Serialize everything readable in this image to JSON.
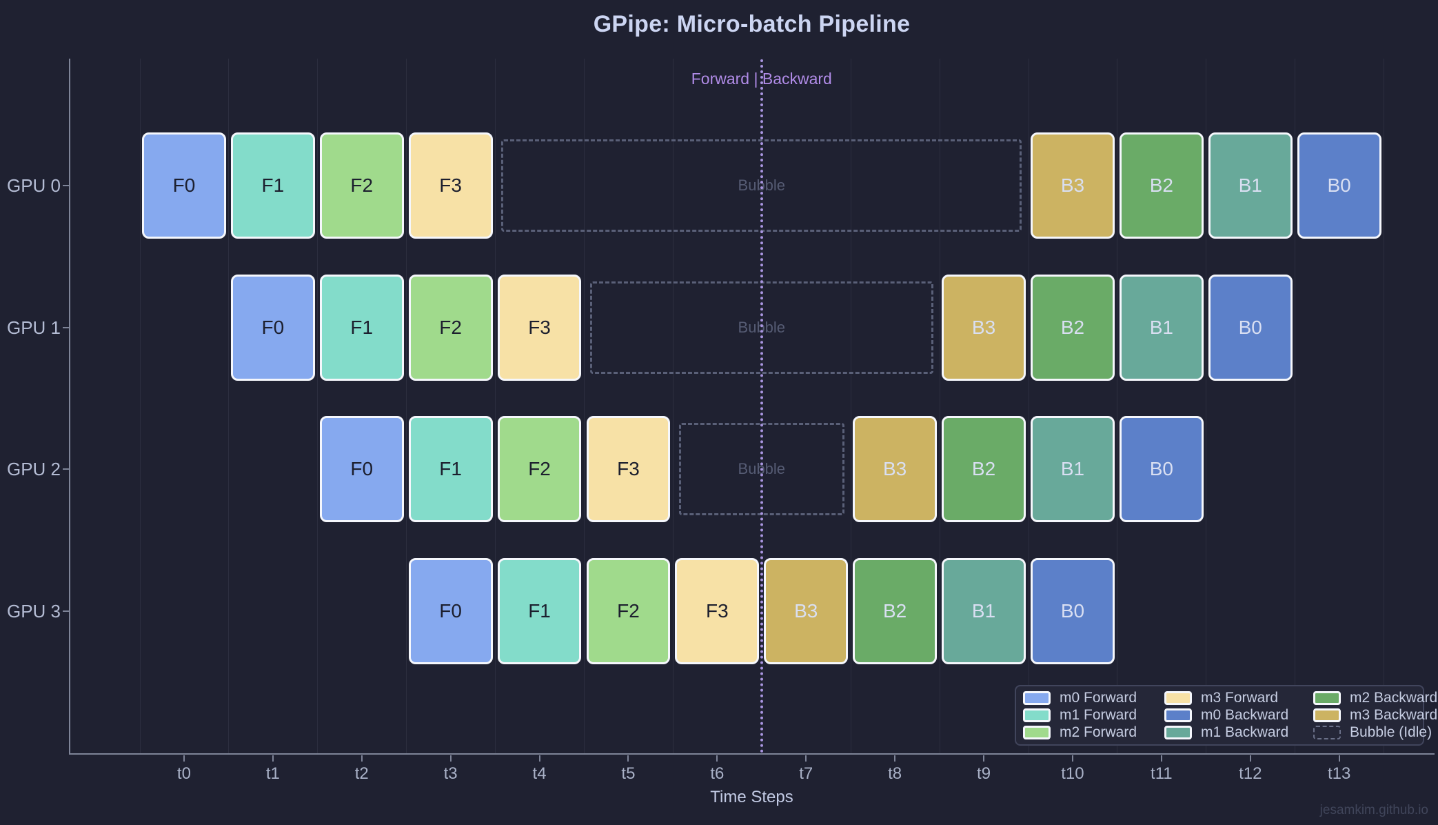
{
  "watermark": "jesamkim.github.io",
  "chart_data": {
    "type": "gantt",
    "title": "GPipe: Micro-batch Pipeline",
    "xlabel": "Time Steps",
    "x_ticks": [
      "t0",
      "t1",
      "t2",
      "t3",
      "t4",
      "t5",
      "t6",
      "t7",
      "t8",
      "t9",
      "t10",
      "t11",
      "t12",
      "t13"
    ],
    "y_labels": [
      "GPU 0",
      "GPU 1",
      "GPU 2",
      "GPU 3"
    ],
    "x_range": [
      0,
      14
    ],
    "grid": "vertical-only",
    "legend_position": "bottom-right",
    "divider": {
      "position": 7,
      "label": "Forward | Backward"
    },
    "bubble_label": "Bubble",
    "palette": {
      "m0_forward": "#86a9ef",
      "m1_forward": "#83dcca",
      "m2_forward": "#a0da8c",
      "m3_forward": "#f7e1a6",
      "m0_backward": "#5c80c9",
      "m1_backward": "#68a99a",
      "m2_backward": "#6aab67",
      "m3_backward": "#ccb362",
      "background": "#1f2131",
      "block_border": "#f5f7fc",
      "bubble_border": "#5a6078",
      "divider_line": "#a995e0",
      "divider_text": "#b18ce8",
      "title_text": "#ccd5f2",
      "tick_text": "#a9b1c7"
    },
    "rows": [
      {
        "label": "GPU 0",
        "blocks": [
          {
            "label": "F0",
            "phase": "forward",
            "micro_batch": 0,
            "start": 0,
            "end": 1,
            "color_key": "m0_forward"
          },
          {
            "label": "F1",
            "phase": "forward",
            "micro_batch": 1,
            "start": 1,
            "end": 2,
            "color_key": "m1_forward"
          },
          {
            "label": "F2",
            "phase": "forward",
            "micro_batch": 2,
            "start": 2,
            "end": 3,
            "color_key": "m2_forward"
          },
          {
            "label": "F3",
            "phase": "forward",
            "micro_batch": 3,
            "start": 3,
            "end": 4,
            "color_key": "m3_forward"
          },
          {
            "label": "Bubble",
            "phase": "bubble",
            "start": 4,
            "end": 10
          },
          {
            "label": "B3",
            "phase": "backward",
            "micro_batch": 3,
            "start": 10,
            "end": 11,
            "color_key": "m3_backward"
          },
          {
            "label": "B2",
            "phase": "backward",
            "micro_batch": 2,
            "start": 11,
            "end": 12,
            "color_key": "m2_backward"
          },
          {
            "label": "B1",
            "phase": "backward",
            "micro_batch": 1,
            "start": 12,
            "end": 13,
            "color_key": "m1_backward"
          },
          {
            "label": "B0",
            "phase": "backward",
            "micro_batch": 0,
            "start": 13,
            "end": 14,
            "color_key": "m0_backward"
          }
        ]
      },
      {
        "label": "GPU 1",
        "blocks": [
          {
            "label": "F0",
            "phase": "forward",
            "micro_batch": 0,
            "start": 1,
            "end": 2,
            "color_key": "m0_forward"
          },
          {
            "label": "F1",
            "phase": "forward",
            "micro_batch": 1,
            "start": 2,
            "end": 3,
            "color_key": "m1_forward"
          },
          {
            "label": "F2",
            "phase": "forward",
            "micro_batch": 2,
            "start": 3,
            "end": 4,
            "color_key": "m2_forward"
          },
          {
            "label": "F3",
            "phase": "forward",
            "micro_batch": 3,
            "start": 4,
            "end": 5,
            "color_key": "m3_forward"
          },
          {
            "label": "Bubble",
            "phase": "bubble",
            "start": 5,
            "end": 9
          },
          {
            "label": "B3",
            "phase": "backward",
            "micro_batch": 3,
            "start": 9,
            "end": 10,
            "color_key": "m3_backward"
          },
          {
            "label": "B2",
            "phase": "backward",
            "micro_batch": 2,
            "start": 10,
            "end": 11,
            "color_key": "m2_backward"
          },
          {
            "label": "B1",
            "phase": "backward",
            "micro_batch": 1,
            "start": 11,
            "end": 12,
            "color_key": "m1_backward"
          },
          {
            "label": "B0",
            "phase": "backward",
            "micro_batch": 0,
            "start": 12,
            "end": 13,
            "color_key": "m0_backward"
          }
        ]
      },
      {
        "label": "GPU 2",
        "blocks": [
          {
            "label": "F0",
            "phase": "forward",
            "micro_batch": 0,
            "start": 2,
            "end": 3,
            "color_key": "m0_forward"
          },
          {
            "label": "F1",
            "phase": "forward",
            "micro_batch": 1,
            "start": 3,
            "end": 4,
            "color_key": "m1_forward"
          },
          {
            "label": "F2",
            "phase": "forward",
            "micro_batch": 2,
            "start": 4,
            "end": 5,
            "color_key": "m2_forward"
          },
          {
            "label": "F3",
            "phase": "forward",
            "micro_batch": 3,
            "start": 5,
            "end": 6,
            "color_key": "m3_forward"
          },
          {
            "label": "Bubble",
            "phase": "bubble",
            "start": 6,
            "end": 8
          },
          {
            "label": "B3",
            "phase": "backward",
            "micro_batch": 3,
            "start": 8,
            "end": 9,
            "color_key": "m3_backward"
          },
          {
            "label": "B2",
            "phase": "backward",
            "micro_batch": 2,
            "start": 9,
            "end": 10,
            "color_key": "m2_backward"
          },
          {
            "label": "B1",
            "phase": "backward",
            "micro_batch": 1,
            "start": 10,
            "end": 11,
            "color_key": "m1_backward"
          },
          {
            "label": "B0",
            "phase": "backward",
            "micro_batch": 0,
            "start": 11,
            "end": 12,
            "color_key": "m0_backward"
          }
        ]
      },
      {
        "label": "GPU 3",
        "blocks": [
          {
            "label": "F0",
            "phase": "forward",
            "micro_batch": 0,
            "start": 3,
            "end": 4,
            "color_key": "m0_forward"
          },
          {
            "label": "F1",
            "phase": "forward",
            "micro_batch": 1,
            "start": 4,
            "end": 5,
            "color_key": "m1_forward"
          },
          {
            "label": "F2",
            "phase": "forward",
            "micro_batch": 2,
            "start": 5,
            "end": 6,
            "color_key": "m2_forward"
          },
          {
            "label": "F3",
            "phase": "forward",
            "micro_batch": 3,
            "start": 6,
            "end": 7,
            "color_key": "m3_forward"
          },
          {
            "label": "B3",
            "phase": "backward",
            "micro_batch": 3,
            "start": 7,
            "end": 8,
            "color_key": "m3_backward"
          },
          {
            "label": "B2",
            "phase": "backward",
            "micro_batch": 2,
            "start": 8,
            "end": 9,
            "color_key": "m2_backward"
          },
          {
            "label": "B1",
            "phase": "backward",
            "micro_batch": 1,
            "start": 9,
            "end": 10,
            "color_key": "m1_backward"
          },
          {
            "label": "B0",
            "phase": "backward",
            "micro_batch": 0,
            "start": 10,
            "end": 11,
            "color_key": "m0_backward"
          }
        ]
      }
    ],
    "legend": [
      {
        "label": "m0 Forward",
        "color_key": "m0_forward"
      },
      {
        "label": "m1 Forward",
        "color_key": "m1_forward"
      },
      {
        "label": "m2 Forward",
        "color_key": "m2_forward"
      },
      {
        "label": "m3 Forward",
        "color_key": "m3_forward"
      },
      {
        "label": "m0 Backward",
        "color_key": "m0_backward"
      },
      {
        "label": "m1 Backward",
        "color_key": "m1_backward"
      },
      {
        "label": "m2 Backward",
        "color_key": "m2_backward"
      },
      {
        "label": "m3 Backward",
        "color_key": "m3_backward"
      },
      {
        "label": "Bubble (Idle)",
        "color_key": "bubble"
      }
    ]
  }
}
